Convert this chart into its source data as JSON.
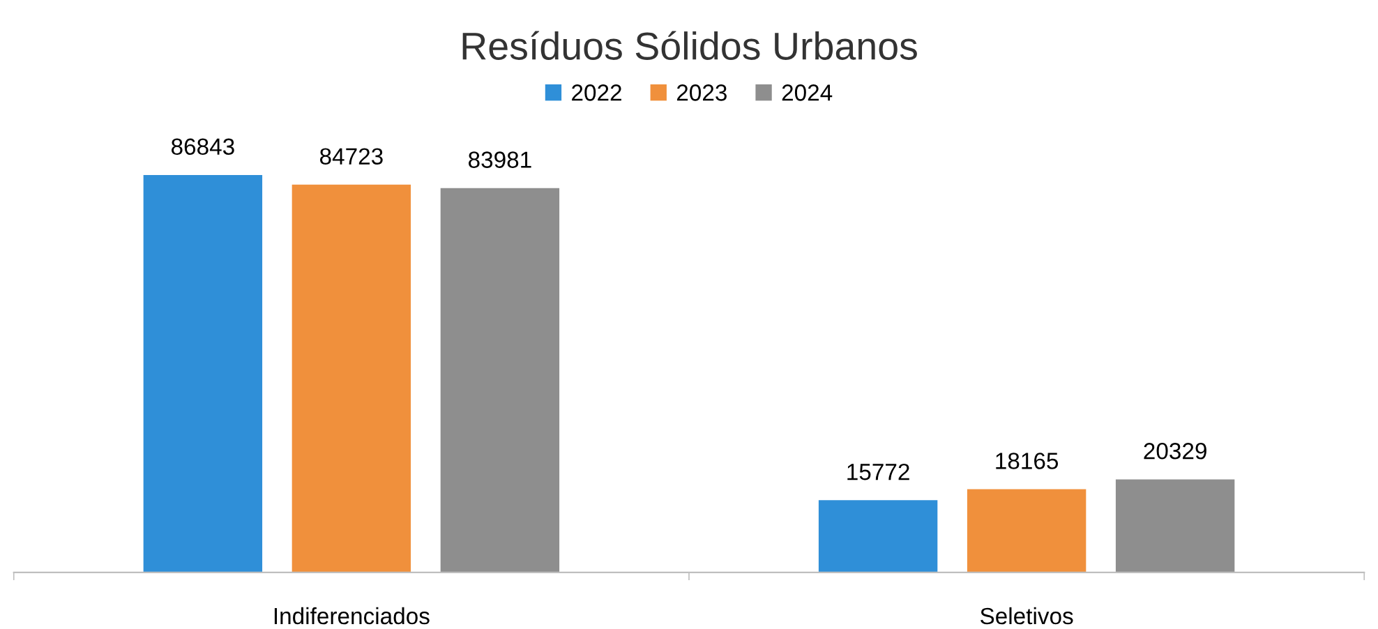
{
  "chart_data": {
    "type": "bar",
    "title": "Resíduos Sólidos Urbanos",
    "categories": [
      "Indiferenciados",
      "Seletivos"
    ],
    "series": [
      {
        "name": "2022",
        "color": "#2f8fd8",
        "values": [
          86843,
          15772
        ]
      },
      {
        "name": "2023",
        "color": "#f0903c",
        "values": [
          84723,
          18165
        ]
      },
      {
        "name": "2024",
        "color": "#8e8e8e",
        "values": [
          83981,
          20329
        ]
      }
    ],
    "data_labels": true,
    "legend": "top",
    "grid": false
  }
}
